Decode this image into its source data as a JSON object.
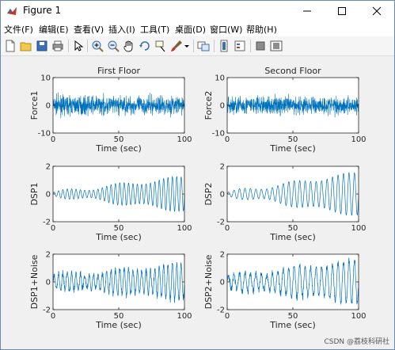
{
  "window": {
    "title": "Figure 1",
    "controls": [
      "minimize-icon",
      "maximize-icon",
      "close-icon"
    ]
  },
  "menu": [
    "文件(F)",
    "编辑(E)",
    "查看(V)",
    "插入(I)",
    "工具(T)",
    "桌面(D)",
    "窗口(W)",
    "帮助(H)"
  ],
  "toolbar_icons": [
    "new-figure-icon",
    "open-file-icon",
    "save-icon",
    "print-icon",
    "select-arrow-icon",
    "zoom-in-icon",
    "zoom-out-icon",
    "pan-hand-icon",
    "rotate-3d-icon",
    "data-cursor-icon",
    "brush-icon",
    "brush-dropdown-icon",
    "link-plot-icon",
    "insert-colorbar-icon",
    "insert-legend-icon",
    "hide-plot-tools-icon",
    "show-plot-tools-icon"
  ],
  "colors": {
    "signal": "#0072bd",
    "axes_bg": "#ffffff",
    "figure_bg": "#f0f0f0"
  },
  "chart_data": [
    {
      "type": "line",
      "title": "First Floor",
      "xlabel": "Time (sec)",
      "ylabel": "Force1",
      "xlim": [
        0,
        100
      ],
      "ylim": [
        -10,
        10
      ],
      "xticks": [
        "0",
        "50",
        "100"
      ],
      "yticks": [
        "10",
        "0",
        "-10"
      ],
      "series": [
        {
          "signal": "random-noise",
          "amplitude": 7
        }
      ]
    },
    {
      "type": "line",
      "title": "Second Floor",
      "xlabel": "Time (sec)",
      "ylabel": "Force2",
      "xlim": [
        0,
        100
      ],
      "ylim": [
        -10,
        10
      ],
      "xticks": [
        "0",
        "50",
        "100"
      ],
      "yticks": [
        "10",
        "0",
        "-10"
      ],
      "series": [
        {
          "signal": "random-noise",
          "amplitude": 7
        }
      ]
    },
    {
      "type": "line",
      "title": "",
      "xlabel": "Time (sec)",
      "ylabel": "DSP1",
      "xlim": [
        0,
        100
      ],
      "ylim": [
        -2,
        2
      ],
      "xticks": [
        "0",
        "50",
        "100"
      ],
      "yticks": [
        "2",
        "0",
        "-2"
      ],
      "series": [
        {
          "signal": "sinusoid",
          "amplitude_start": 0.1,
          "amplitude_end": 1.2,
          "cycles": 30
        }
      ]
    },
    {
      "type": "line",
      "title": "",
      "xlabel": "Time (sec)",
      "ylabel": "DSP2",
      "xlim": [
        0,
        100
      ],
      "ylim": [
        -2,
        2
      ],
      "xticks": [
        "0",
        "50",
        "100"
      ],
      "yticks": [
        "2",
        "0",
        "-2"
      ],
      "series": [
        {
          "signal": "sinusoid",
          "amplitude_start": 0.1,
          "amplitude_end": 1.5,
          "cycles": 24
        }
      ]
    },
    {
      "type": "line",
      "title": "",
      "xlabel": "Time (sec)",
      "ylabel": "DSP1+Noise",
      "xlim": [
        0,
        100
      ],
      "ylim": [
        -2,
        2
      ],
      "xticks": [
        "0",
        "50",
        "100"
      ],
      "yticks": [
        "2",
        "0",
        "-2"
      ],
      "series": [
        {
          "signal": "noisy-sinusoid",
          "amplitude_start": 0.4,
          "amplitude_end": 1.2,
          "cycles": 30,
          "noise": 0.25
        }
      ]
    },
    {
      "type": "line",
      "title": "",
      "xlabel": "Time (sec)",
      "ylabel": "DSP2+Noise",
      "xlim": [
        0,
        100
      ],
      "ylim": [
        -2,
        2
      ],
      "xticks": [
        "0",
        "50",
        "100"
      ],
      "yticks": [
        "2",
        "0",
        "-2"
      ],
      "series": [
        {
          "signal": "noisy-sinusoid",
          "amplitude_start": 0.4,
          "amplitude_end": 1.5,
          "cycles": 24,
          "noise": 0.25
        }
      ]
    }
  ],
  "watermark": "CSDN @荔枝科研社"
}
